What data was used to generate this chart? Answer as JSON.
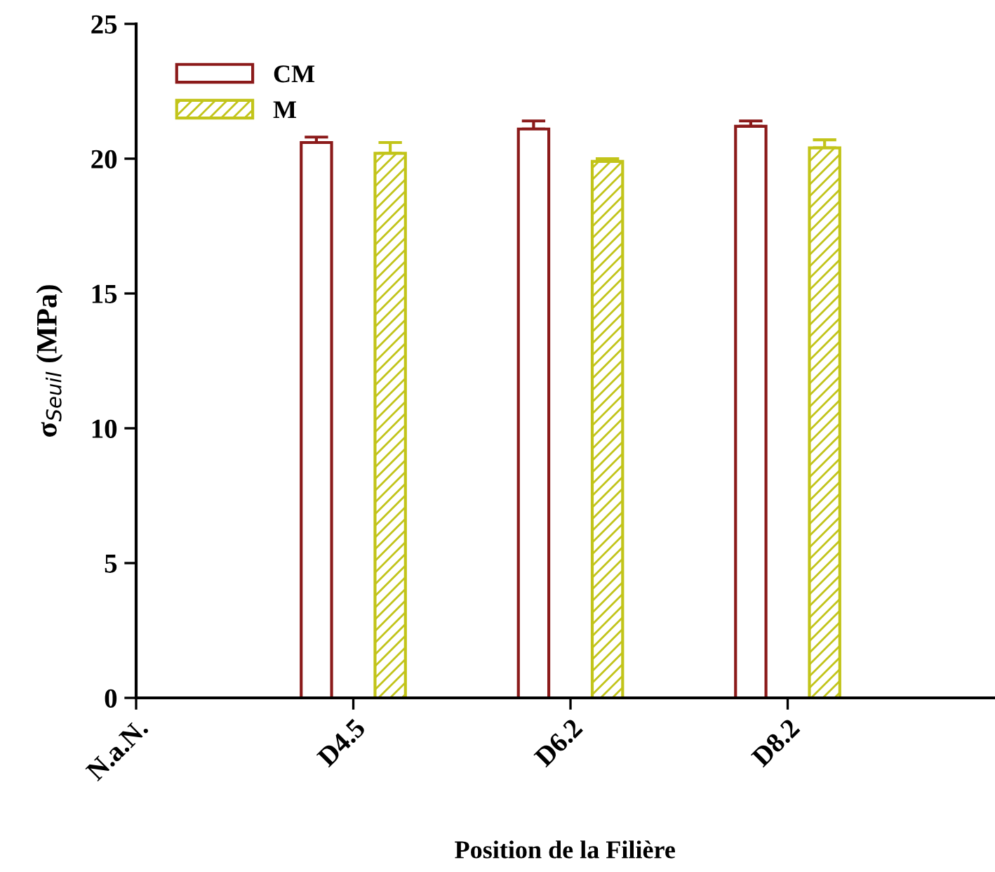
{
  "chart_data": {
    "type": "bar",
    "xlabel": "Position de la Filière",
    "ylabel": "σ$_{Seuil}$ (MPa)",
    "categories": [
      "N.a.N.",
      "D4.5",
      "D6.2",
      "D8.2"
    ],
    "series": [
      {
        "name": "CM",
        "color": "#8b1a1a",
        "values": [
          null,
          20.6,
          21.1,
          21.2
        ],
        "errors": [
          null,
          0.2,
          0.3,
          0.2
        ]
      },
      {
        "name": "M",
        "color": "#c2c41a",
        "values": [
          null,
          20.2,
          19.9,
          20.4
        ],
        "errors": [
          null,
          0.4,
          0.1,
          0.3
        ]
      }
    ],
    "ylim": [
      0,
      25
    ],
    "yticks": [
      0,
      5,
      10,
      15,
      20,
      25
    ],
    "grid": false,
    "legend": "top left"
  }
}
